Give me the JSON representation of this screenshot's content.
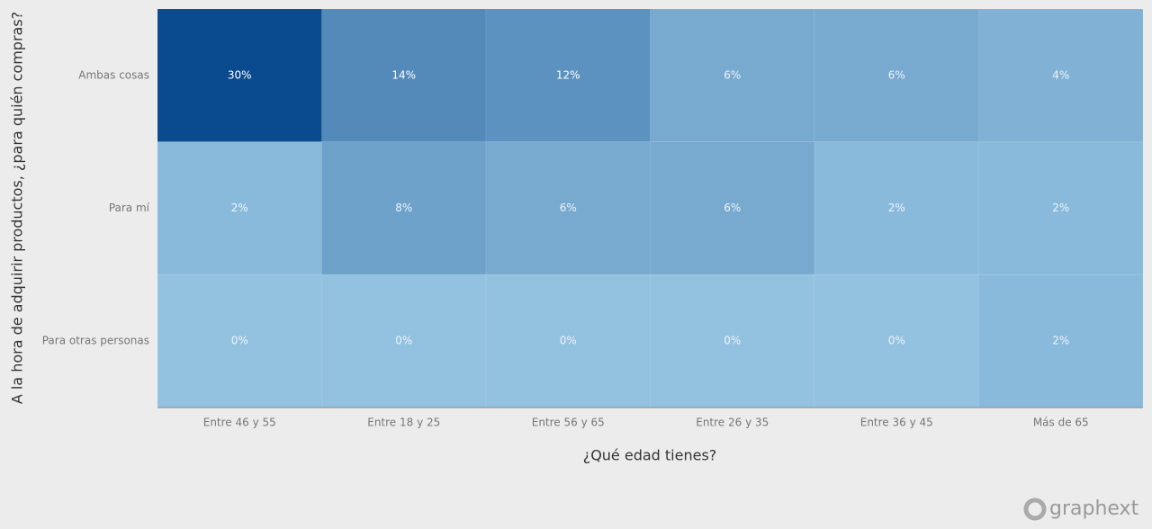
{
  "chart_data": {
    "type": "heatmap",
    "x_label": "¿Qué edad tienes?",
    "y_label": "A la hora de adquirir productos, ¿para quién compras?",
    "x_categories": [
      "Entre 46 y 55",
      "Entre 18 y 25",
      "Entre 56 y 65",
      "Entre 26 y 35",
      "Entre 36 y 45",
      "Más de 65"
    ],
    "y_categories": [
      "Ambas cosas",
      "Para mí",
      "Para otras personas"
    ],
    "values": [
      [
        30,
        14,
        12,
        6,
        6,
        4
      ],
      [
        2,
        8,
        6,
        6,
        2,
        2
      ],
      [
        0,
        0,
        0,
        0,
        0,
        2
      ]
    ],
    "value_labels": [
      [
        "30%",
        "14%",
        "12%",
        "6%",
        "6%",
        "4%"
      ],
      [
        "2%",
        "8%",
        "6%",
        "6%",
        "2%",
        "2%"
      ],
      [
        "0%",
        "0%",
        "0%",
        "0%",
        "0%",
        "2%"
      ]
    ],
    "color_scale": [
      "#93c2e0",
      "#0a4a8e"
    ]
  },
  "watermark": "graphext"
}
